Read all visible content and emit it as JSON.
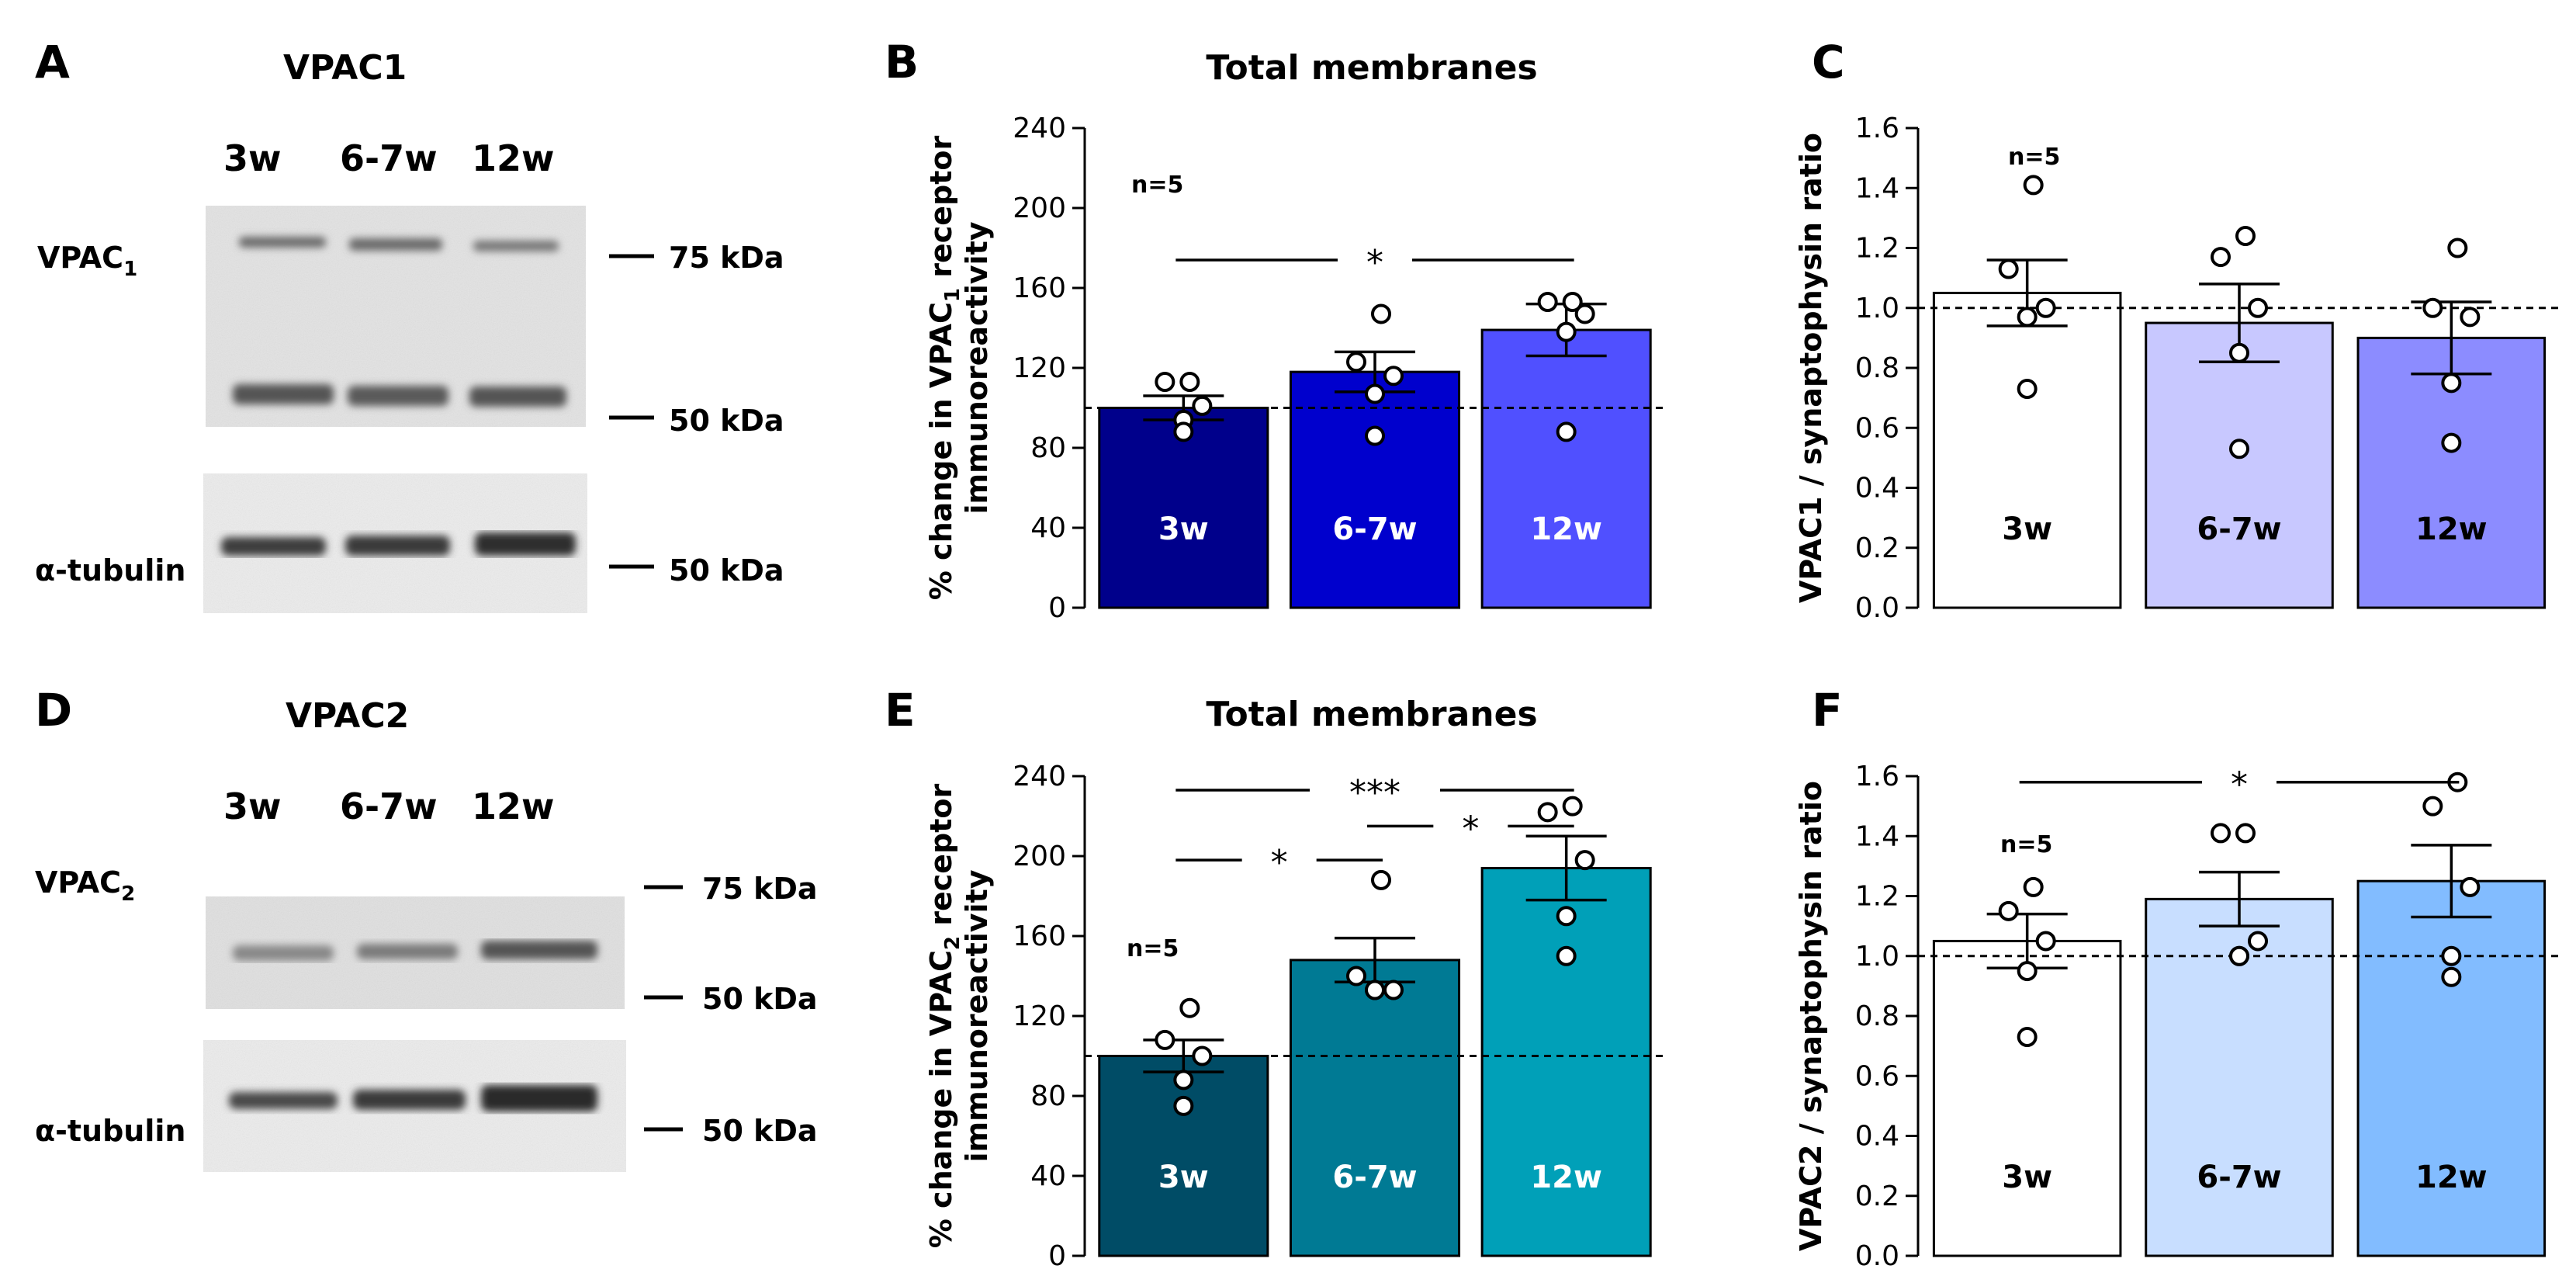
{
  "figure": {
    "panels": {
      "A": "A",
      "B": "B",
      "C": "C",
      "D": "D",
      "E": "E",
      "F": "F"
    }
  },
  "blots": [
    {
      "letter": "A",
      "title": "VPAC1",
      "lanes": [
        "3w",
        "6-7w",
        "12w"
      ],
      "receptor_label": "VPAC",
      "receptor_sub": "1",
      "tubulin_label": "α-tubulin",
      "markers": [
        "75 kDa",
        "50 kDa",
        "50 kDa"
      ]
    },
    {
      "letter": "D",
      "title": "VPAC2",
      "lanes": [
        "3w",
        "6-7w",
        "12w"
      ],
      "receptor_label": "VPAC",
      "receptor_sub": "2",
      "tubulin_label": "α-tubulin",
      "markers": [
        "75 kDa",
        "50 kDa",
        "50 kDa"
      ]
    }
  ],
  "chart_data": [
    {
      "panel": "B",
      "type": "bar",
      "title": "Total membranes",
      "ylabel_line1_pre": "% change in VPAC",
      "ylabel_line1_sub": "1",
      "ylabel_line1_post": " receptor",
      "ylabel_line2": "immunoreactivity",
      "ylim": [
        0,
        240
      ],
      "yticks": [
        "0",
        "40",
        "80",
        "120",
        "160",
        "200",
        "240"
      ],
      "categories": [
        "3w",
        "6-7w",
        "12w"
      ],
      "values": [
        100,
        118,
        139
      ],
      "sem": [
        6,
        10,
        13
      ],
      "points": [
        [
          113,
          113,
          101,
          94,
          88
        ],
        [
          147,
          123,
          116,
          107,
          86
        ],
        [
          153,
          153,
          147,
          138,
          88
        ]
      ],
      "bar_colors": [
        "#00008b",
        "#0000cd",
        "#5050ff"
      ],
      "bar_label_color": "#ffffff",
      "reference_line": 100,
      "n_label": "n=5",
      "significance": [
        {
          "from": 0,
          "to": 2,
          "y": 174,
          "label": "*"
        }
      ]
    },
    {
      "panel": "C",
      "type": "bar",
      "title": "",
      "ylabel": "VPAC1 / synaptophysin ratio",
      "ylim": [
        0,
        1.6
      ],
      "yticks": [
        "0.0",
        "0.2",
        "0.4",
        "0.6",
        "0.8",
        "1.0",
        "1.2",
        "1.4",
        "1.6"
      ],
      "categories": [
        "3w",
        "6-7w",
        "12w"
      ],
      "values": [
        1.05,
        0.95,
        0.9
      ],
      "sem": [
        0.11,
        0.13,
        0.12
      ],
      "points": [
        [
          1.41,
          1.13,
          1.0,
          0.97,
          0.73
        ],
        [
          1.24,
          1.17,
          1.0,
          0.85,
          0.53
        ],
        [
          1.2,
          1.0,
          0.97,
          0.75,
          0.55
        ]
      ],
      "bar_colors": [
        "#ffffff",
        "#c8c8ff",
        "#8c8cff"
      ],
      "bar_label_color": "#000000",
      "reference_line": 1.0,
      "n_label": "n=5",
      "significance": []
    },
    {
      "panel": "E",
      "type": "bar",
      "title": "Total membranes",
      "ylabel_line1_pre": "% change in VPAC",
      "ylabel_line1_sub": "2",
      "ylabel_line1_post": " receptor",
      "ylabel_line2": "immunoreactivity",
      "ylim": [
        0,
        240
      ],
      "yticks": [
        "0",
        "40",
        "80",
        "120",
        "160",
        "200",
        "240"
      ],
      "categories": [
        "3w",
        "6-7w",
        "12w"
      ],
      "values": [
        100,
        148,
        194
      ],
      "sem": [
        8,
        11,
        16
      ],
      "points": [
        [
          124,
          108,
          100,
          88,
          75
        ],
        [
          188,
          140,
          133,
          133,
          133
        ],
        [
          225,
          222,
          198,
          170,
          150
        ]
      ],
      "bar_colors": [
        "#004c66",
        "#007a94",
        "#00a0b8"
      ],
      "bar_label_color": "#ffffff",
      "reference_line": 100,
      "n_label": "n=5",
      "significance": [
        {
          "from": 0,
          "to": 2,
          "y": 233,
          "label": "***"
        },
        {
          "from": 1,
          "to": 2,
          "y": 215,
          "label": "*"
        },
        {
          "from": 0,
          "to": 1,
          "y": 198,
          "label": "*"
        }
      ]
    },
    {
      "panel": "F",
      "type": "bar",
      "title": "",
      "ylabel": "VPAC2 / synaptophysin ratio",
      "ylim": [
        0,
        1.6
      ],
      "yticks": [
        "0.0",
        "0.2",
        "0.4",
        "0.6",
        "0.8",
        "1.0",
        "1.2",
        "1.4",
        "1.6"
      ],
      "categories": [
        "3w",
        "6-7w",
        "12w"
      ],
      "values": [
        1.05,
        1.19,
        1.25
      ],
      "sem": [
        0.09,
        0.09,
        0.12
      ],
      "points": [
        [
          1.23,
          1.15,
          1.05,
          0.95,
          0.73
        ],
        [
          1.41,
          1.41,
          1.05,
          1.0,
          1.0
        ],
        [
          1.58,
          1.5,
          1.23,
          1.0,
          0.93
        ]
      ],
      "bar_colors": [
        "#ffffff",
        "#c8deff",
        "#82bcff"
      ],
      "bar_label_color": "#000000",
      "reference_line": 1.0,
      "n_label": "n=5",
      "significance": [
        {
          "from": 0,
          "to": 2,
          "y": 1.58,
          "label": "*"
        }
      ]
    }
  ]
}
